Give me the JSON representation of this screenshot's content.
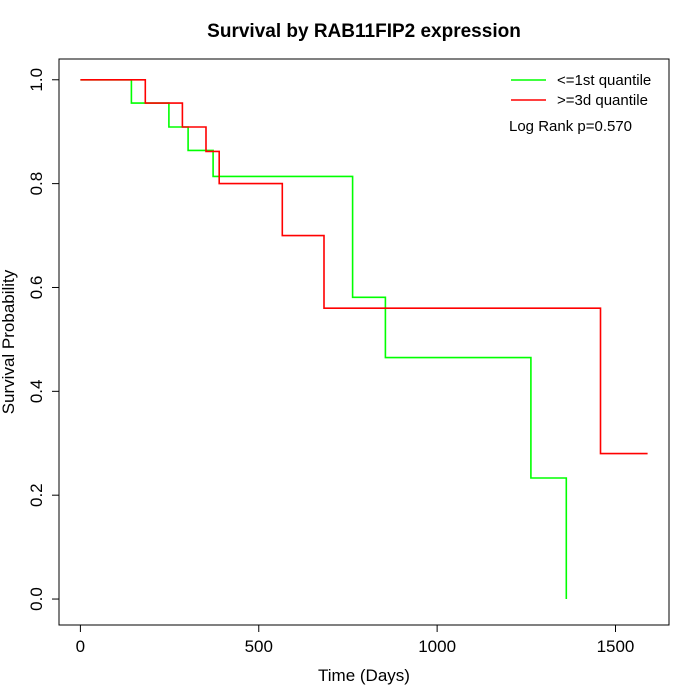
{
  "chart_data": {
    "type": "line",
    "title": "Survival by RAB11FIP2 expression",
    "xlabel": "Time (Days)",
    "ylabel": "Survival Probability",
    "xlim": [
      -60,
      1650
    ],
    "ylim": [
      -0.05,
      1.04
    ],
    "x_ticks": [
      0,
      500,
      1000,
      1500
    ],
    "x_tick_labels": [
      "0",
      "500",
      "1000",
      "1500"
    ],
    "y_ticks": [
      0.0,
      0.2,
      0.4,
      0.6,
      0.8,
      1.0
    ],
    "y_tick_labels": [
      "0.0",
      "0.2",
      "0.4",
      "0.6",
      "0.8",
      "1.0"
    ],
    "grid": false,
    "legend_position": "top-right",
    "annotation": "Log Rank p=0.570",
    "step": true,
    "series": [
      {
        "name": "<=1st quantile",
        "color": "#00ff00",
        "points": [
          [
            0,
            1.0
          ],
          [
            143,
            1.0
          ],
          [
            143,
            0.955
          ],
          [
            248,
            0.955
          ],
          [
            248,
            0.909
          ],
          [
            302,
            0.909
          ],
          [
            302,
            0.864
          ],
          [
            372,
            0.864
          ],
          [
            372,
            0.814
          ],
          [
            763,
            0.814
          ],
          [
            763,
            0.581
          ],
          [
            855,
            0.581
          ],
          [
            855,
            0.465
          ],
          [
            1263,
            0.465
          ],
          [
            1263,
            0.233
          ],
          [
            1362,
            0.233
          ],
          [
            1362,
            0.0
          ]
        ]
      },
      {
        "name": ">=3d quantile",
        "color": "#ff0000",
        "points": [
          [
            0,
            1.0
          ],
          [
            182,
            1.0
          ],
          [
            182,
            0.955
          ],
          [
            286,
            0.955
          ],
          [
            286,
            0.909
          ],
          [
            352,
            0.909
          ],
          [
            352,
            0.862
          ],
          [
            389,
            0.862
          ],
          [
            389,
            0.8
          ],
          [
            566,
            0.8
          ],
          [
            566,
            0.7
          ],
          [
            683,
            0.7
          ],
          [
            683,
            0.56
          ],
          [
            1458,
            0.56
          ],
          [
            1458,
            0.28
          ],
          [
            1590,
            0.28
          ]
        ]
      }
    ]
  }
}
